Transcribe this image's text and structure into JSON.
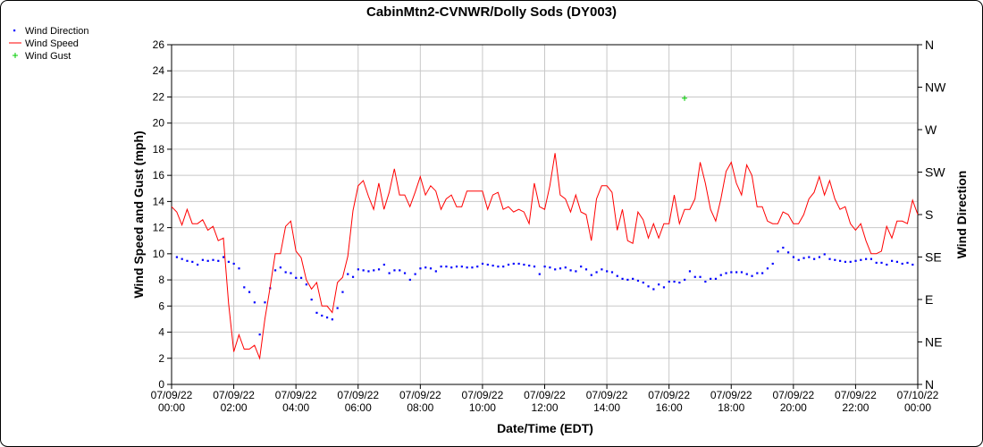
{
  "chart_data": {
    "type": "line",
    "title": "CabinMtn2-CVNWR/Dolly Sods (DY003)",
    "xlabel": "Date/Time (EDT)",
    "ylabel": "Wind Speed and Gust (mph)",
    "y2label": "Wind Direction",
    "xlim": [
      0,
      1440
    ],
    "xticks": [
      {
        "value": 0,
        "label": "07/09/22 00:00"
      },
      {
        "value": 120,
        "label": "07/09/22 02:00"
      },
      {
        "value": 240,
        "label": "07/09/22 04:00"
      },
      {
        "value": 360,
        "label": "07/09/22 06:00"
      },
      {
        "value": 480,
        "label": "07/09/22 08:00"
      },
      {
        "value": 600,
        "label": "07/09/22 10:00"
      },
      {
        "value": 720,
        "label": "07/09/22 12:00"
      },
      {
        "value": 840,
        "label": "07/09/22 14:00"
      },
      {
        "value": 960,
        "label": "07/09/22 16:00"
      },
      {
        "value": 1080,
        "label": "07/09/22 18:00"
      },
      {
        "value": 1200,
        "label": "07/09/22 20:00"
      },
      {
        "value": 1320,
        "label": "07/09/22 22:00"
      },
      {
        "value": 1440,
        "label": "07/10/22 00:00"
      }
    ],
    "ylim": [
      0,
      26
    ],
    "yticks": [
      0,
      2,
      4,
      6,
      8,
      10,
      12,
      14,
      16,
      18,
      20,
      22,
      24,
      26
    ],
    "y2lim": [
      0,
      360
    ],
    "y2ticks": [
      {
        "value": 0,
        "label": "N"
      },
      {
        "value": 45,
        "label": "NE"
      },
      {
        "value": 90,
        "label": "E"
      },
      {
        "value": 135,
        "label": "SE"
      },
      {
        "value": 180,
        "label": "S"
      },
      {
        "value": 225,
        "label": "SW"
      },
      {
        "value": 270,
        "label": "W"
      },
      {
        "value": 315,
        "label": "NW"
      },
      {
        "value": 360,
        "label": "N"
      }
    ],
    "grid": true,
    "legend": "top-left",
    "series": [
      {
        "name": "Wind Direction",
        "color": "#0000ff",
        "style": "points",
        "axis": "y2",
        "x": [
          10,
          20,
          30,
          40,
          50,
          60,
          70,
          80,
          90,
          100,
          110,
          120,
          130,
          140,
          150,
          160,
          170,
          180,
          190,
          200,
          210,
          220,
          230,
          240,
          250,
          260,
          270,
          280,
          290,
          300,
          310,
          320,
          330,
          340,
          350,
          360,
          370,
          380,
          390,
          400,
          410,
          420,
          430,
          440,
          450,
          460,
          470,
          480,
          490,
          500,
          510,
          520,
          530,
          540,
          550,
          560,
          570,
          580,
          590,
          600,
          610,
          620,
          630,
          640,
          650,
          660,
          670,
          680,
          690,
          700,
          710,
          720,
          730,
          740,
          750,
          760,
          770,
          780,
          790,
          800,
          810,
          820,
          830,
          840,
          850,
          860,
          870,
          880,
          890,
          900,
          910,
          920,
          930,
          940,
          950,
          960,
          970,
          980,
          990,
          1000,
          1010,
          1020,
          1030,
          1040,
          1050,
          1060,
          1070,
          1080,
          1090,
          1100,
          1110,
          1120,
          1130,
          1140,
          1150,
          1160,
          1170,
          1180,
          1190,
          1200,
          1210,
          1220,
          1230,
          1240,
          1250,
          1260,
          1270,
          1280,
          1290,
          1300,
          1310,
          1320,
          1330,
          1340,
          1350,
          1360,
          1370,
          1380,
          1390,
          1400,
          1410,
          1420,
          1430
        ],
        "values": [
          135,
          133,
          131,
          130,
          127,
          132,
          131,
          132,
          131,
          135,
          130,
          128,
          123,
          103,
          98,
          87,
          53,
          87,
          102,
          121,
          124,
          119,
          118,
          113,
          113,
          106,
          90,
          76,
          73,
          71,
          69,
          81,
          98,
          117,
          114,
          122,
          121,
          120,
          121,
          122,
          127,
          118,
          121,
          121,
          118,
          111,
          117,
          123,
          124,
          123,
          120,
          125,
          125,
          124,
          125,
          125,
          124,
          124,
          125,
          128,
          127,
          126,
          125,
          125,
          127,
          128,
          128,
          127,
          126,
          125,
          117,
          125,
          124,
          122,
          123,
          124,
          121,
          120,
          125,
          122,
          116,
          119,
          122,
          120,
          119,
          115,
          112,
          111,
          112,
          110,
          108,
          104,
          101,
          106,
          103,
          109,
          109,
          108,
          111,
          120,
          114,
          114,
          109,
          112,
          112,
          116,
          118,
          119,
          119,
          119,
          117,
          115,
          118,
          118,
          123,
          128,
          141,
          145,
          140,
          135,
          132,
          134,
          135,
          133,
          135,
          138,
          133,
          132,
          131,
          130,
          130,
          131,
          132,
          133,
          133,
          129,
          129,
          127,
          131,
          130,
          128,
          129,
          127
        ]
      },
      {
        "name": "Wind Speed",
        "color": "#ff0000",
        "style": "line",
        "x": [
          0,
          10,
          20,
          30,
          40,
          50,
          60,
          70,
          80,
          90,
          100,
          110,
          120,
          130,
          140,
          150,
          160,
          170,
          180,
          190,
          200,
          210,
          220,
          230,
          240,
          250,
          260,
          270,
          280,
          290,
          300,
          310,
          320,
          330,
          340,
          350,
          360,
          370,
          380,
          390,
          400,
          410,
          420,
          430,
          440,
          450,
          460,
          470,
          480,
          490,
          500,
          510,
          520,
          530,
          540,
          550,
          560,
          570,
          580,
          590,
          600,
          610,
          620,
          630,
          640,
          650,
          660,
          670,
          680,
          690,
          700,
          710,
          720,
          730,
          740,
          750,
          760,
          770,
          780,
          790,
          800,
          810,
          820,
          830,
          840,
          850,
          860,
          870,
          880,
          890,
          900,
          910,
          920,
          930,
          940,
          950,
          960,
          970,
          980,
          990,
          1000,
          1010,
          1020,
          1030,
          1040,
          1050,
          1060,
          1070,
          1080,
          1090,
          1100,
          1110,
          1120,
          1130,
          1140,
          1150,
          1160,
          1170,
          1180,
          1190,
          1200,
          1210,
          1220,
          1230,
          1240,
          1250,
          1260,
          1270,
          1280,
          1290,
          1300,
          1310,
          1320,
          1330,
          1340,
          1350,
          1360,
          1370,
          1380,
          1390,
          1400,
          1410,
          1420,
          1430,
          1440
        ],
        "values": [
          13.6,
          13.2,
          12.2,
          13.4,
          12.3,
          12.3,
          12.6,
          11.8,
          12.1,
          11.0,
          11.2,
          6.2,
          2.5,
          3.8,
          2.7,
          2.7,
          3.0,
          2.0,
          5.0,
          7.4,
          10.0,
          10.0,
          12.1,
          12.5,
          10.2,
          9.7,
          8.0,
          7.3,
          7.8,
          6.0,
          6.0,
          5.5,
          7.8,
          8.2,
          9.8,
          13.3,
          15.2,
          15.6,
          14.4,
          13.4,
          15.4,
          13.4,
          14.7,
          16.5,
          14.5,
          14.5,
          13.6,
          14.7,
          15.9,
          14.5,
          15.2,
          14.8,
          13.4,
          14.2,
          14.5,
          13.6,
          13.6,
          14.8,
          14.8,
          14.8,
          14.8,
          13.4,
          14.5,
          14.7,
          13.4,
          13.6,
          13.2,
          13.4,
          13.2,
          12.3,
          15.4,
          13.6,
          13.4,
          15.2,
          17.7,
          14.5,
          14.2,
          13.2,
          14.5,
          13.2,
          13.0,
          11.0,
          14.2,
          15.2,
          15.2,
          14.7,
          11.8,
          13.4,
          11.0,
          10.8,
          13.2,
          12.6,
          11.2,
          12.3,
          11.2,
          12.3,
          12.3,
          14.5,
          12.3,
          13.4,
          13.4,
          14.2,
          17.0,
          15.4,
          13.4,
          12.5,
          14.2,
          16.3,
          17.0,
          15.4,
          14.5,
          16.8,
          16.0,
          13.6,
          13.6,
          12.5,
          12.3,
          12.3,
          13.2,
          13.0,
          12.3,
          12.3,
          13.0,
          14.2,
          14.7,
          15.9,
          14.5,
          15.6,
          14.2,
          13.4,
          13.6,
          12.3,
          11.8,
          12.3,
          11.0,
          10.0,
          10.0,
          10.2,
          12.1,
          11.2,
          12.5,
          12.5,
          12.3,
          14.1,
          13.0
        ]
      },
      {
        "name": "Wind Gust",
        "color": "#00cc00",
        "style": "plus",
        "x": [
          990
        ],
        "values": [
          21.9
        ]
      }
    ]
  }
}
